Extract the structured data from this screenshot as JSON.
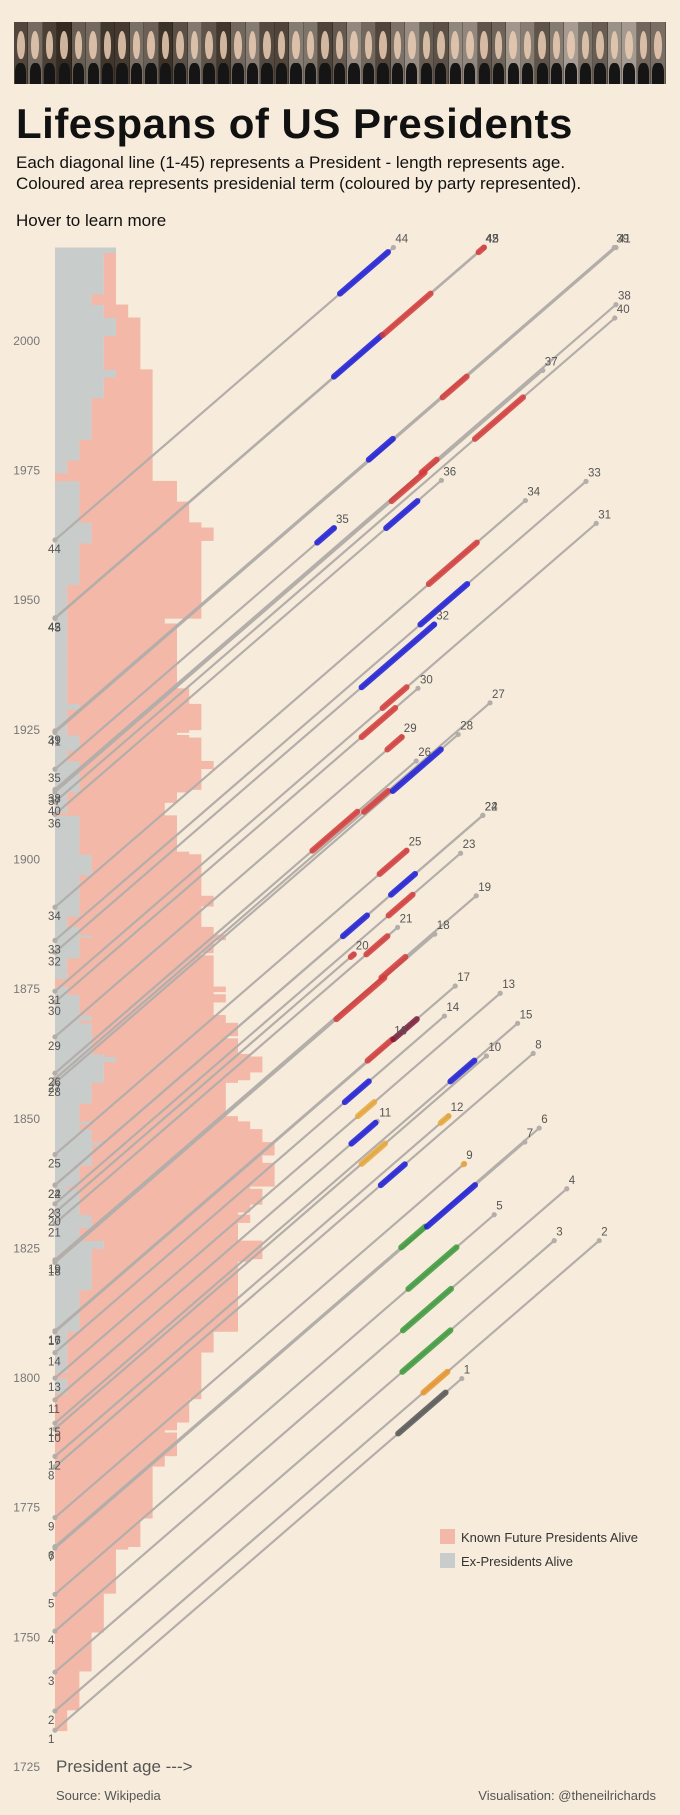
{
  "header": {
    "title": "Lifespans of US Presidents",
    "subtitle_line1": "Each diagonal line (1-45) represents a President - length represents age.",
    "subtitle_line2": "Coloured area represents presidenial term (coloured by party represented).",
    "hover_hint": "Hover to learn more",
    "portrait_count": 45
  },
  "footer": {
    "source": "Source: Wikipedia",
    "credit": "Visualisation: @theneilrichards"
  },
  "chart_data": {
    "type": "line",
    "title": "Lifespans of US Presidents",
    "xlabel": "President age --->",
    "ylabel": "",
    "ylim": [
      1725,
      2020
    ],
    "yticks": [
      1725,
      1750,
      1775,
      1800,
      1825,
      1850,
      1875,
      1900,
      1925,
      1950,
      1975,
      2000
    ],
    "legend": [
      {
        "label": "Known Future Presidents Alive",
        "color": "#f3b8a8"
      },
      {
        "label": "Ex-Presidents Alive",
        "color": "#c8cccb"
      }
    ],
    "party_colors": {
      "None": "#555555",
      "Federalist": "#e8962d",
      "Democratic-Republican": "#3c9a3c",
      "Democratic": "#1b1bd8",
      "Whig": "#e8a83a",
      "Republican": "#d43a3a",
      "National Union": "#7a1a3a"
    },
    "presidents": [
      {
        "n": 1,
        "born": 1732.1,
        "died": 1799.9,
        "term": [
          1789.3,
          1797.2
        ],
        "party": "None"
      },
      {
        "n": 2,
        "born": 1735.8,
        "died": 1826.5,
        "term": [
          1797.2,
          1801.2
        ],
        "party": "Federalist"
      },
      {
        "n": 3,
        "born": 1743.3,
        "died": 1826.5,
        "term": [
          1801.2,
          1809.2
        ],
        "party": "Democratic-Republican"
      },
      {
        "n": 4,
        "born": 1751.2,
        "died": 1836.5,
        "term": [
          1809.2,
          1817.2
        ],
        "party": "Democratic-Republican"
      },
      {
        "n": 5,
        "born": 1758.3,
        "died": 1831.5,
        "term": [
          1817.2,
          1825.2
        ],
        "party": "Democratic-Republican"
      },
      {
        "n": 6,
        "born": 1767.5,
        "died": 1848.2,
        "term": [
          1825.2,
          1829.2
        ],
        "party": "Democratic-Republican"
      },
      {
        "n": 7,
        "born": 1767.2,
        "died": 1845.5,
        "term": [
          1829.2,
          1837.2
        ],
        "party": "Democratic"
      },
      {
        "n": 8,
        "born": 1782.9,
        "died": 1862.6,
        "term": [
          1837.2,
          1841.2
        ],
        "party": "Democratic"
      },
      {
        "n": 9,
        "born": 1773.1,
        "died": 1841.3,
        "term": [
          1841.2,
          1841.3
        ],
        "party": "Whig"
      },
      {
        "n": 10,
        "born": 1790.2,
        "died": 1862.1,
        "term": [
          1841.3,
          1845.2
        ],
        "party": "Whig"
      },
      {
        "n": 11,
        "born": 1795.8,
        "died": 1849.5,
        "term": [
          1845.2,
          1849.2
        ],
        "party": "Democratic"
      },
      {
        "n": 12,
        "born": 1784.9,
        "died": 1850.5,
        "term": [
          1849.2,
          1850.5
        ],
        "party": "Whig"
      },
      {
        "n": 13,
        "born": 1800.0,
        "died": 1874.2,
        "term": [
          1850.5,
          1853.2
        ],
        "party": "Whig"
      },
      {
        "n": 14,
        "born": 1804.9,
        "died": 1869.8,
        "term": [
          1853.2,
          1857.2
        ],
        "party": "Democratic"
      },
      {
        "n": 15,
        "born": 1791.3,
        "died": 1868.4,
        "term": [
          1857.2,
          1861.2
        ],
        "party": "Democratic"
      },
      {
        "n": 16,
        "born": 1809.1,
        "died": 1865.3,
        "term": [
          1861.2,
          1865.3
        ],
        "party": "Republican"
      },
      {
        "n": 17,
        "born": 1808.9,
        "died": 1875.6,
        "term": [
          1865.3,
          1869.2
        ],
        "party": "National Union"
      },
      {
        "n": 18,
        "born": 1822.3,
        "died": 1885.6,
        "term": [
          1869.2,
          1877.2
        ],
        "party": "Republican"
      },
      {
        "n": 19,
        "born": 1822.8,
        "died": 1893.0,
        "term": [
          1877.2,
          1881.2
        ],
        "party": "Republican"
      },
      {
        "n": 20,
        "born": 1831.9,
        "died": 1881.7,
        "term": [
          1881.2,
          1881.7
        ],
        "party": "Republican"
      },
      {
        "n": 21,
        "born": 1829.8,
        "died": 1886.9,
        "term": [
          1881.7,
          1885.2
        ],
        "party": "Republican"
      },
      {
        "n": 22,
        "born": 1837.2,
        "died": 1908.5,
        "term": [
          1885.2,
          1889.2
        ],
        "party": "Democratic"
      },
      {
        "n": 23,
        "born": 1833.6,
        "died": 1901.2,
        "term": [
          1889.2,
          1893.2
        ],
        "party": "Republican"
      },
      {
        "n": 24,
        "born": 1837.2,
        "died": 1908.5,
        "term": [
          1893.2,
          1897.2
        ],
        "party": "Democratic"
      },
      {
        "n": 25,
        "born": 1843.1,
        "died": 1901.7,
        "term": [
          1897.2,
          1901.7
        ],
        "party": "Republican"
      },
      {
        "n": 26,
        "born": 1858.8,
        "died": 1919.0,
        "term": [
          1901.7,
          1909.2
        ],
        "party": "Republican"
      },
      {
        "n": 27,
        "born": 1857.7,
        "died": 1930.2,
        "term": [
          1909.2,
          1913.2
        ],
        "party": "Republican"
      },
      {
        "n": 28,
        "born": 1856.9,
        "died": 1924.1,
        "term": [
          1913.2,
          1921.2
        ],
        "party": "Democratic"
      },
      {
        "n": 29,
        "born": 1865.8,
        "died": 1923.6,
        "term": [
          1921.2,
          1923.6
        ],
        "party": "Republican"
      },
      {
        "n": 30,
        "born": 1872.5,
        "died": 1933.0,
        "term": [
          1923.6,
          1929.2
        ],
        "party": "Republican"
      },
      {
        "n": 31,
        "born": 1874.6,
        "died": 1964.8,
        "term": [
          1929.2,
          1933.2
        ],
        "party": "Republican"
      },
      {
        "n": 32,
        "born": 1882.1,
        "died": 1945.3,
        "term": [
          1933.2,
          1945.3
        ],
        "party": "Democratic"
      },
      {
        "n": 33,
        "born": 1884.4,
        "died": 1972.9,
        "term": [
          1945.3,
          1953.1
        ],
        "party": "Democratic"
      },
      {
        "n": 34,
        "born": 1890.8,
        "died": 1969.2,
        "term": [
          1953.1,
          1961.1
        ],
        "party": "Republican"
      },
      {
        "n": 35,
        "born": 1917.4,
        "died": 1963.9,
        "term": [
          1961.1,
          1963.9
        ],
        "party": "Democratic"
      },
      {
        "n": 36,
        "born": 1908.7,
        "died": 1973.1,
        "term": [
          1963.9,
          1969.1
        ],
        "party": "Democratic"
      },
      {
        "n": 37,
        "born": 1913.0,
        "died": 1994.3,
        "term": [
          1969.1,
          1974.6
        ],
        "party": "Republican"
      },
      {
        "n": 38,
        "born": 1913.5,
        "died": 2006.99,
        "term": [
          1974.6,
          1977.1
        ],
        "party": "Republican"
      },
      {
        "n": 39,
        "born": 1924.8,
        "died": 2018.0,
        "term": [
          1977.1,
          1981.1
        ],
        "party": "Democratic"
      },
      {
        "n": 40,
        "born": 1911.1,
        "died": 2004.4,
        "term": [
          1981.1,
          1989.1
        ],
        "party": "Republican"
      },
      {
        "n": 41,
        "born": 1924.5,
        "died": 2018.0,
        "term": [
          1989.1,
          1993.1
        ],
        "party": "Republican"
      },
      {
        "n": 42,
        "born": 1946.6,
        "died": 2018.0,
        "term": [
          1993.1,
          2001.1
        ],
        "party": "Democratic"
      },
      {
        "n": 43,
        "born": 1946.5,
        "died": 2018.0,
        "term": [
          2001.1,
          2009.1
        ],
        "party": "Republican"
      },
      {
        "n": 44,
        "born": 1961.6,
        "died": 2018.0,
        "term": [
          2009.1,
          2017.1
        ],
        "party": "Democratic"
      },
      {
        "n": 45,
        "born": 1946.5,
        "died": 2018.0,
        "term": [
          2017.1,
          2018.0
        ],
        "party": "Republican"
      }
    ]
  }
}
